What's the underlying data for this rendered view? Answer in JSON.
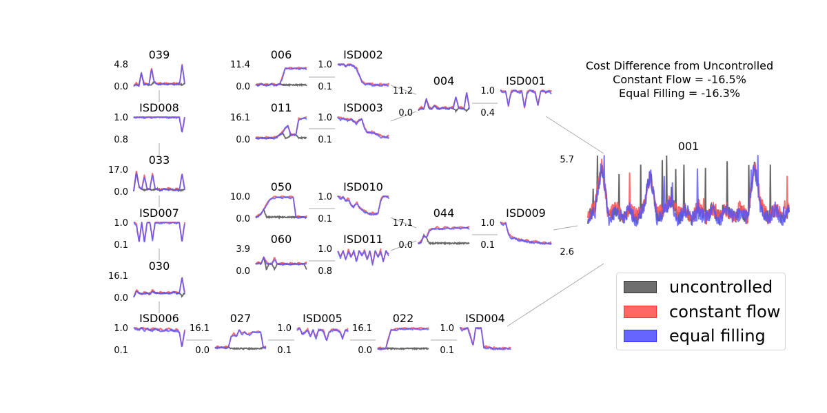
{
  "chart_data": {
    "type": "line",
    "title": "Cost Difference from Uncontrolled",
    "cost_lines": [
      "Constant Flow = -16.5%",
      "Equal Filling = -16.3%"
    ],
    "series": [
      {
        "name": "uncontrolled",
        "color": "#555555"
      },
      {
        "name": "constant flow",
        "color": "#ff5555"
      },
      {
        "name": "equal filling",
        "color": "#5555ff"
      }
    ],
    "edges": [
      [
        "039",
        "ISD008"
      ],
      [
        "ISD008",
        "033"
      ],
      [
        "033",
        "ISD007"
      ],
      [
        "ISD007",
        "030"
      ],
      [
        "030",
        "ISD006"
      ],
      [
        "ISD006",
        "027"
      ],
      [
        "027",
        "ISD005"
      ],
      [
        "ISD005",
        "022"
      ],
      [
        "022",
        "ISD004"
      ],
      [
        "ISD004",
        "001"
      ],
      [
        "006",
        "ISD002"
      ],
      [
        "011",
        "ISD003"
      ],
      [
        "ISD002",
        "004"
      ],
      [
        "ISD003",
        "004"
      ],
      [
        "004",
        "ISD001"
      ],
      [
        "ISD001",
        "001"
      ],
      [
        "050",
        "ISD010"
      ],
      [
        "060",
        "ISD011"
      ],
      [
        "ISD010",
        "044"
      ],
      [
        "ISD011",
        "044"
      ],
      [
        "044",
        "ISD009"
      ],
      [
        "ISD009",
        "001"
      ]
    ],
    "panels": [
      {
        "id": "039",
        "kind": "depth",
        "ymax": "4.8",
        "ymin": "0.0",
        "pattern": [
          0,
          0.1,
          0.0,
          0.6,
          0.1,
          0.1,
          0.05,
          0.8,
          0.2,
          0.1,
          0.1,
          0.1,
          0.1,
          0.1,
          0.1,
          0.1,
          0.1,
          0.1,
          0.1,
          1.0,
          0.1
        ]
      },
      {
        "id": "ISD008",
        "kind": "valve",
        "ymax": "1.0",
        "ymin": "0.8",
        "pattern": [
          1,
          1,
          1,
          1,
          1,
          1,
          1,
          1,
          1,
          1,
          1,
          1,
          1,
          1,
          1,
          1,
          1,
          1,
          0.3,
          1
        ]
      },
      {
        "id": "033",
        "kind": "depth",
        "ymax": "17.0",
        "ymin": "0.0",
        "pattern": [
          0,
          0.9,
          0.2,
          0.1,
          0.7,
          0.1,
          0.1,
          0.8,
          0.1,
          0.1,
          0.05,
          0.1,
          0.1,
          0.1,
          0.1,
          0.05,
          0.1,
          0.05,
          0.8,
          0.1
        ]
      },
      {
        "id": "ISD007",
        "kind": "valve",
        "ymax": "1.0",
        "ymin": "0.1",
        "pattern": [
          1,
          0.9,
          0.1,
          1,
          0.1,
          1,
          1,
          0.2,
          1,
          1,
          1,
          1,
          1,
          1,
          1,
          1,
          1,
          1,
          0.1,
          1
        ]
      },
      {
        "id": "030",
        "kind": "depth",
        "ymax": "16.1",
        "ymin": "0.0",
        "pattern": [
          0,
          0.3,
          0.2,
          0.15,
          0.2,
          0.2,
          0.15,
          0.3,
          0.2,
          0.2,
          0.2,
          0.2,
          0.2,
          0.2,
          0.2,
          0.25,
          0.2,
          0.2,
          0.9,
          0.2
        ]
      },
      {
        "id": "ISD006",
        "kind": "valve",
        "ymax": "1.0",
        "ymin": "0.1",
        "pattern": [
          1,
          0.95,
          0.9,
          1,
          0.9,
          0.95,
          0.9,
          0.9,
          0.95,
          0.9,
          0.9,
          0.85,
          0.9,
          0.9,
          0.9,
          0.85,
          0.9,
          0.8,
          0.1,
          0.9
        ]
      },
      {
        "id": "027",
        "kind": "depth",
        "ymax": "16.1",
        "ymin": "0.0",
        "pattern": [
          0.1,
          0.1,
          0.1,
          0.1,
          0.1,
          0.1,
          0.6,
          0.7,
          0.6,
          0.9,
          0.7,
          0.8,
          0.7,
          0.7,
          0.8,
          0.8,
          0.8,
          0.8,
          0.1,
          0.1
        ]
      },
      {
        "id": "ISD005",
        "kind": "valve",
        "ymax": "1.0",
        "ymin": "0.1",
        "pattern": [
          0.9,
          1,
          0.7,
          0.8,
          0.9,
          0.6,
          0.9,
          0.5,
          0.9,
          0.9,
          0.8,
          0.4,
          0.8,
          0.9,
          0.9,
          0.9,
          0.8,
          0.5,
          0.9,
          0.9
        ]
      },
      {
        "id": "022",
        "kind": "depth",
        "ymax": "16.1",
        "ymin": "0.0",
        "pattern": [
          0.05,
          0.05,
          0.05,
          0.05,
          0.5,
          0.9,
          0.9,
          0.9,
          0.95,
          0.95,
          0.95,
          0.95,
          0.95,
          0.95,
          0.95,
          0.95,
          0.95,
          0.95,
          0.95,
          0.95
        ]
      },
      {
        "id": "ISD004",
        "kind": "valve",
        "ymax": "1.0",
        "ymin": "0.1",
        "pattern": [
          1,
          0.9,
          0.95,
          1,
          0.6,
          0.2,
          1,
          1,
          1,
          0.1,
          0.1,
          0.1,
          0.05,
          0.05,
          0.05,
          0.05,
          0.05,
          0.05,
          0.05,
          0.05
        ]
      },
      {
        "id": "006",
        "kind": "depth",
        "ymax": "11.4",
        "ymin": "0.0",
        "pattern": [
          0.05,
          0.05,
          0.1,
          0.05,
          0.05,
          0.05,
          0.1,
          0.05,
          0.05,
          0.1,
          0.4,
          0.8,
          0.8,
          0.8,
          0.8,
          0.8,
          0.8,
          0.8,
          0.8,
          0.8
        ]
      },
      {
        "id": "ISD002",
        "kind": "valve",
        "ymax": "1.0",
        "ymin": "0.1",
        "pattern": [
          1,
          1,
          1,
          0.9,
          1,
          0.95,
          0.9,
          0.8,
          0.5,
          0.2,
          0.1,
          0.1,
          0.1,
          0.05,
          0.05,
          0.05,
          0.05,
          0.05,
          0.05,
          0.05
        ]
      },
      {
        "id": "011",
        "kind": "depth",
        "ymax": "16.1",
        "ymin": "0.0",
        "pattern": [
          0.05,
          0.05,
          0.05,
          0.05,
          0.05,
          0.05,
          0.05,
          0.05,
          0.1,
          0.2,
          0.3,
          0.5,
          0.6,
          0.2,
          0.2,
          0.2,
          0.9,
          0.9,
          0.95,
          0.95
        ]
      },
      {
        "id": "ISD003",
        "kind": "valve",
        "ymax": "1.0",
        "ymin": "0.1",
        "pattern": [
          1,
          0.9,
          0.95,
          0.9,
          0.85,
          0.9,
          0.8,
          0.7,
          0.85,
          0.9,
          0.5,
          0.3,
          0.3,
          0.3,
          0.25,
          0.2,
          0.1,
          0.1,
          0.1,
          0.1
        ]
      },
      {
        "id": "050",
        "kind": "depth",
        "ymax": "10.0",
        "ymin": "0.0",
        "pattern": [
          0.05,
          0.1,
          0.2,
          0.4,
          0.6,
          0.8,
          0.9,
          0.95,
          0.95,
          0.95,
          0.95,
          0.95,
          0.95,
          0.95,
          0.95,
          0.05,
          0.05,
          0.05,
          0.05,
          0.05
        ]
      },
      {
        "id": "ISD010",
        "kind": "valve",
        "ymax": "1.0",
        "ymin": "0.1",
        "pattern": [
          1,
          0.9,
          0.95,
          0.8,
          0.85,
          0.6,
          0.5,
          0.7,
          0.5,
          0.4,
          0.3,
          0.25,
          0.2,
          0.2,
          0.2,
          0.2,
          0.8,
          1,
          1,
          0.95
        ]
      },
      {
        "id": "060",
        "kind": "depth",
        "ymax": "3.9",
        "ymin": "0.0",
        "pattern": [
          0.3,
          0.35,
          0.3,
          0.6,
          0.35,
          0.3,
          0.3,
          0.55,
          0.3,
          0.3,
          0.3,
          0.3,
          0.3,
          0.3,
          0.3,
          0.3,
          0.3,
          0.3,
          0.3,
          0.35
        ]
      },
      {
        "id": "ISD011",
        "kind": "valve",
        "ymax": "1.0",
        "ymin": "0.8",
        "pattern": [
          0.9,
          0.6,
          0.9,
          0.5,
          0.9,
          0.6,
          0.9,
          0.4,
          0.9,
          0.7,
          0.9,
          0.5,
          0.9,
          0.3,
          0.9,
          0.6,
          0.9,
          0.4,
          0.9,
          0.7
        ]
      },
      {
        "id": "004",
        "kind": "depth",
        "ymax": "11.2",
        "ymin": "0.0",
        "pattern": [
          0.1,
          0.2,
          0.15,
          0.6,
          0.2,
          0.15,
          0.3,
          0.2,
          0.15,
          0.2,
          0.2,
          0.15,
          0.2,
          0.2,
          0.7,
          0.2,
          0.2,
          0.15,
          0.9,
          0.2
        ]
      },
      {
        "id": "ISD001",
        "kind": "valve",
        "ymax": "1.0",
        "ymin": "0.4",
        "pattern": [
          1,
          0.9,
          0.95,
          0.3,
          0.9,
          1,
          0.95,
          0.9,
          0.95,
          0.2,
          0.9,
          1,
          0.95,
          0.9,
          0.3,
          0.95,
          1,
          0.9,
          0.95,
          0.9
        ]
      },
      {
        "id": "044",
        "kind": "depth",
        "ymax": "17.1",
        "ymin": "0.0",
        "pattern": [
          0.05,
          0.1,
          0.4,
          0.3,
          0.6,
          0.7,
          0.7,
          0.75,
          0.7,
          0.7,
          0.75,
          0.75,
          0.7,
          0.75,
          0.75,
          0.75,
          0.75,
          0.75,
          0.75,
          0.75
        ]
      },
      {
        "id": "ISD009",
        "kind": "valve",
        "ymax": "1.0",
        "ymin": "0.1",
        "pattern": [
          1,
          0.9,
          0.95,
          0.5,
          0.3,
          0.3,
          0.25,
          0.2,
          0.2,
          0.15,
          0.15,
          0.1,
          0.1,
          0.1,
          0.1,
          0.05,
          0.05,
          0.05,
          0.05,
          0.05
        ]
      },
      {
        "id": "001",
        "kind": "outfall",
        "ymax": "5.7",
        "ymin": "2.6",
        "pattern": [
          0.3,
          0.4,
          0.9,
          0.3,
          0.4,
          0.3,
          0.4,
          0.3,
          0.4,
          0.8,
          0.3,
          0.4,
          0.5,
          0.3,
          0.4,
          0.3,
          0.4,
          0.3,
          0.4,
          0.3,
          0.4,
          0.3,
          0.4,
          0.3,
          0.9,
          0.4,
          0.3,
          0.4,
          0.3,
          0.4
        ]
      }
    ]
  }
}
